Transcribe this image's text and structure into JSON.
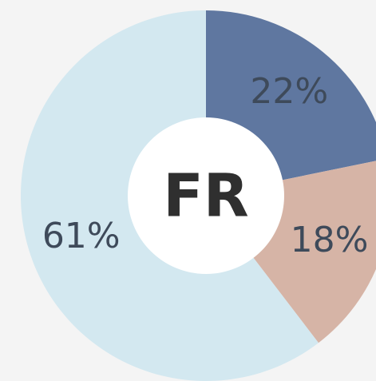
{
  "chart_data": {
    "type": "donut",
    "center_label": "FR",
    "values": [
      22,
      18,
      61
    ],
    "value_labels": [
      "22%",
      "18%",
      "61%"
    ],
    "colors": [
      "#5f77a0",
      "#d6b4a6",
      "#d3e8f0"
    ]
  }
}
